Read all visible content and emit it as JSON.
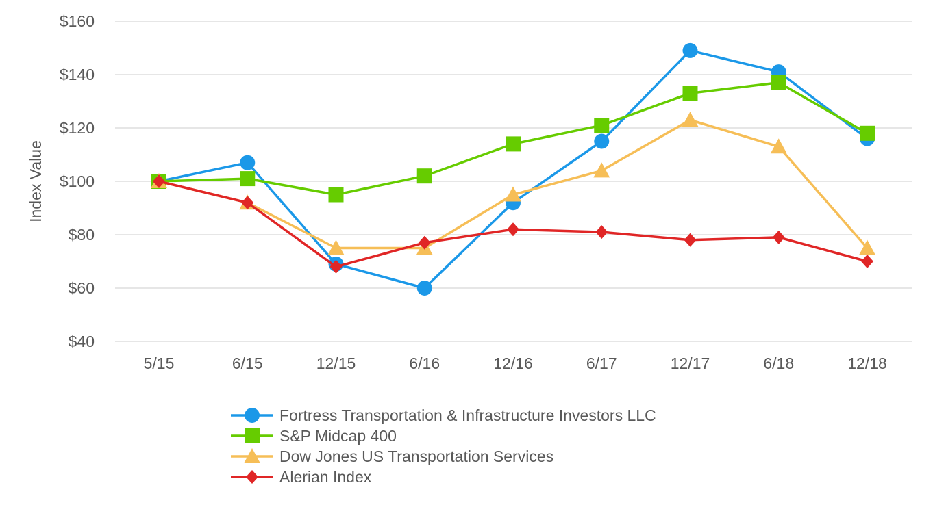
{
  "chart_data": {
    "type": "line",
    "ylabel": "Index Value",
    "ylim": [
      40,
      160
    ],
    "y_ticks": [
      40,
      60,
      80,
      100,
      120,
      140,
      160
    ],
    "y_tick_labels": [
      "$40",
      "$60",
      "$80",
      "$100",
      "$120",
      "$140",
      "$160"
    ],
    "categories": [
      "5/15",
      "6/15",
      "12/15",
      "6/16",
      "12/16",
      "6/17",
      "12/17",
      "6/18",
      "12/18"
    ],
    "grid": true,
    "legend_position": "bottom",
    "series": [
      {
        "name": "Fortress Transportation & Infrastructure Investors LLC",
        "color": "#1b98e8",
        "marker": "circle",
        "values": [
          100,
          107,
          69,
          60,
          92,
          115,
          149,
          141,
          116
        ]
      },
      {
        "name": "S&P Midcap 400",
        "color": "#66cc00",
        "marker": "square",
        "values": [
          100,
          101,
          95,
          102,
          114,
          121,
          133,
          137,
          118
        ]
      },
      {
        "name": "Dow Jones US Transportation Services",
        "color": "#f6be57",
        "marker": "triangle",
        "values": [
          100,
          92,
          75,
          75,
          95,
          104,
          123,
          113,
          75
        ]
      },
      {
        "name": "Alerian Index",
        "color": "#e02626",
        "marker": "diamond",
        "values": [
          100,
          92,
          68,
          77,
          82,
          81,
          78,
          79,
          70
        ]
      }
    ]
  }
}
